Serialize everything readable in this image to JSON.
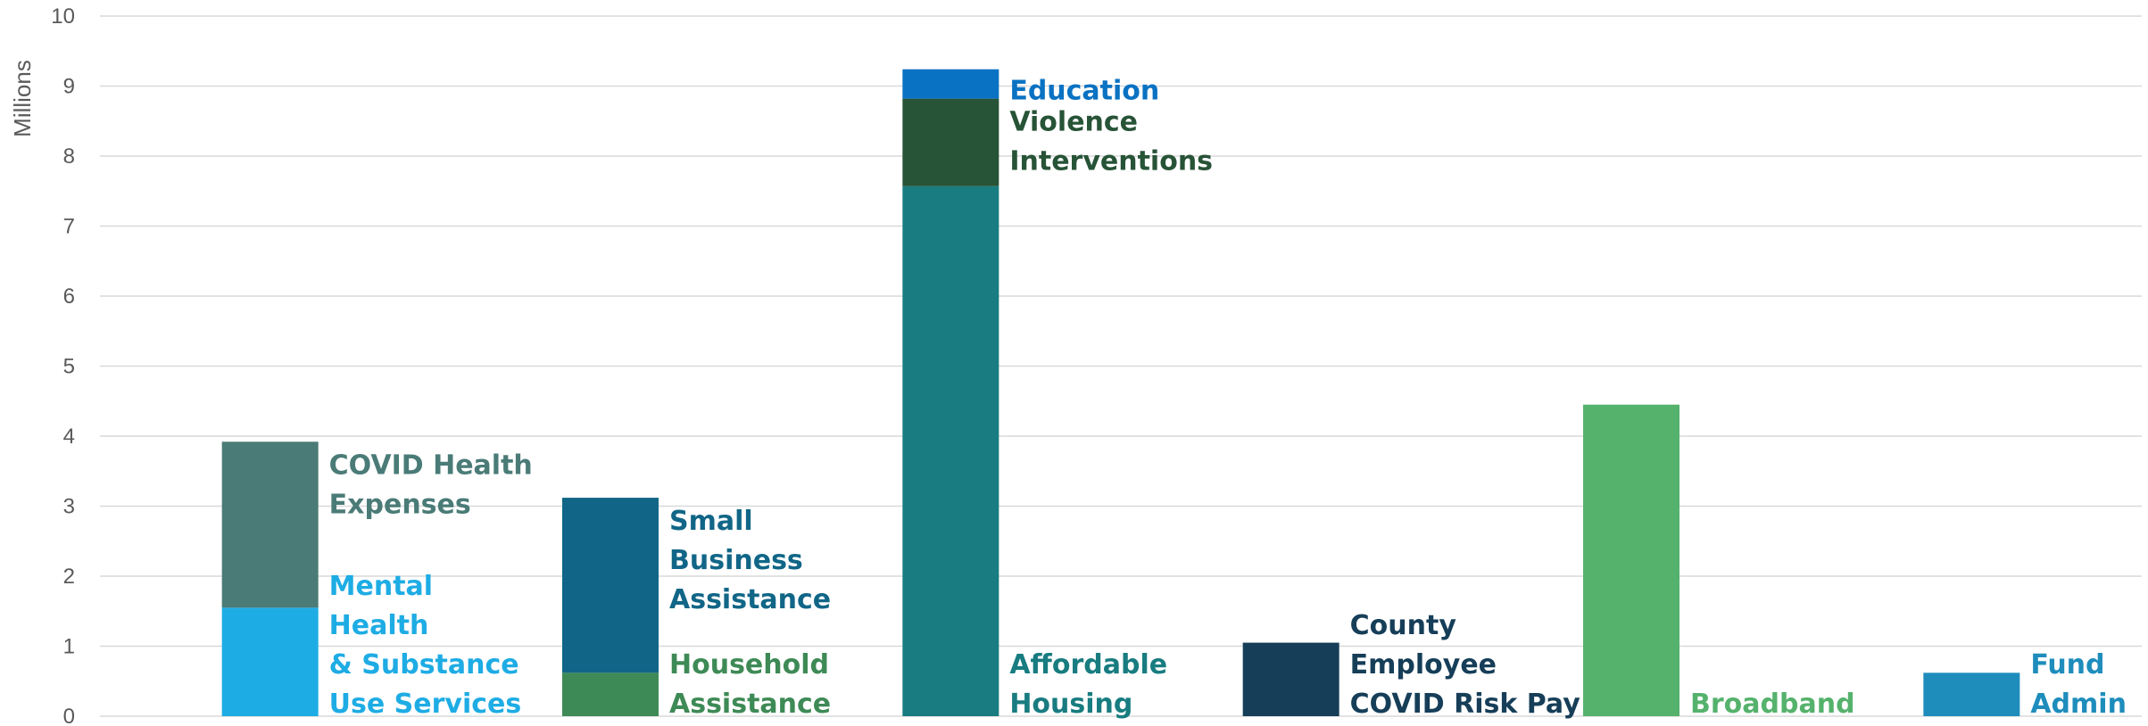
{
  "chart_data": {
    "type": "bar",
    "stacked": true,
    "title": "",
    "xlabel": "",
    "ylabel": "Millions",
    "ylim": [
      0,
      10
    ],
    "yticks": [
      0,
      1,
      2,
      3,
      4,
      5,
      6,
      7,
      8,
      9,
      10
    ],
    "grid": true,
    "legend": "none",
    "bars": [
      {
        "segments": [
          {
            "label": [
              "Mental",
              "Health",
              "& Substance",
              "Use Services"
            ],
            "value": 1.55,
            "color": "#1EACE4",
            "label_color": "#1EACE4"
          },
          {
            "label": [
              "COVID Health",
              "Expenses"
            ],
            "value": 2.37,
            "color": "#4A7B77",
            "label_color": "#4A7B77"
          }
        ]
      },
      {
        "segments": [
          {
            "label": [
              "Household",
              "Assistance"
            ],
            "value": 0.62,
            "color": "#3E8A56",
            "label_color": "#3E8A56"
          },
          {
            "label": [
              "Small",
              "Business",
              "Assistance"
            ],
            "value": 2.5,
            "color": "#116687",
            "label_color": "#116687"
          }
        ]
      },
      {
        "segments": [
          {
            "label": [
              "Affordable",
              "Housing"
            ],
            "value": 7.57,
            "color": "#187C80",
            "label_color": "#187C80"
          },
          {
            "label": [
              "Violence",
              "Interventions"
            ],
            "value": 1.25,
            "color": "#275337",
            "label_color": "#275337"
          },
          {
            "label": [
              "Education"
            ],
            "value": 0.42,
            "color": "#0A72C2",
            "label_color": "#0A72C2"
          }
        ]
      },
      {
        "segments": [
          {
            "label": [
              "County",
              "Employee",
              "COVID Risk Pay"
            ],
            "value": 1.05,
            "color": "#163E58",
            "label_color": "#163E58"
          }
        ]
      },
      {
        "segments": [
          {
            "label": [
              "Broadband"
            ],
            "value": 4.45,
            "color": "#55B26C",
            "label_color": "#55B26C"
          }
        ]
      },
      {
        "segments": [
          {
            "label": [
              "Fund",
              "Admin"
            ],
            "value": 0.62,
            "color": "#1E8DBC",
            "label_color": "#1E8DBC"
          }
        ]
      }
    ]
  }
}
